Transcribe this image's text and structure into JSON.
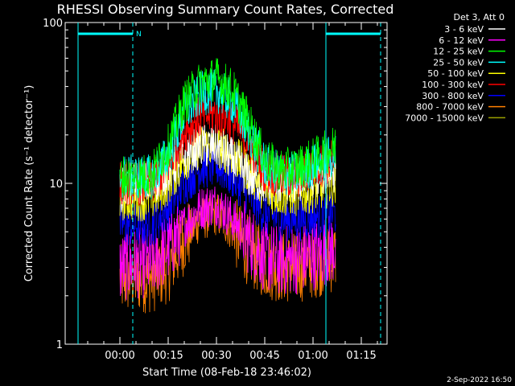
{
  "chart_data": {
    "type": "line",
    "title": "RHESSI Observing Summary Count Rates, Corrected",
    "ylabel": "Corrected Count Rate (s⁻¹ detector⁻¹)",
    "xlabel": "Start Time (08-Feb-18 23:46:02)",
    "y_scale": "log",
    "ylim": [
      1,
      100
    ],
    "y_ticks": [
      {
        "value": 1,
        "label": "1"
      },
      {
        "value": 10,
        "label": "10"
      },
      {
        "value": 100,
        "label": "100"
      }
    ],
    "xlim_minutes": [
      -17,
      83
    ],
    "x_ticks": [
      {
        "minutes": 0,
        "label": "00:00"
      },
      {
        "minutes": 15,
        "label": "00:15"
      },
      {
        "minutes": 30,
        "label": "00:30"
      },
      {
        "minutes": 45,
        "label": "00:45"
      },
      {
        "minutes": 60,
        "label": "01:00"
      },
      {
        "minutes": 75,
        "label": "01:15"
      }
    ],
    "legend_title": "Det 3, Att 0",
    "legend_position": "top-right",
    "night_marker_label": "N",
    "flag_intervals_minutes": [
      [
        -13,
        4
      ],
      [
        64,
        81
      ]
    ],
    "series": [
      {
        "name": "3 - 6 keV",
        "color": "#ffffff",
        "points": [
          [
            0,
            9
          ],
          [
            5,
            10
          ],
          [
            10,
            10
          ],
          [
            15,
            12
          ],
          [
            20,
            15
          ],
          [
            25,
            17
          ],
          [
            30,
            17
          ],
          [
            35,
            14
          ],
          [
            40,
            11
          ],
          [
            45,
            10
          ],
          [
            50,
            10
          ],
          [
            55,
            10
          ],
          [
            60,
            11
          ],
          [
            67,
            12
          ]
        ]
      },
      {
        "name": "6 - 12 keV",
        "color": "#ff00ff",
        "points": [
          [
            0,
            3
          ],
          [
            5,
            3.2
          ],
          [
            10,
            3.2
          ],
          [
            15,
            4
          ],
          [
            20,
            5.5
          ],
          [
            25,
            7
          ],
          [
            30,
            7.5
          ],
          [
            35,
            6
          ],
          [
            40,
            4.5
          ],
          [
            45,
            3.5
          ],
          [
            50,
            3.3
          ],
          [
            55,
            3.4
          ],
          [
            60,
            3.6
          ],
          [
            67,
            4
          ]
        ]
      },
      {
        "name": "12 - 25 keV",
        "color": "#00ff00",
        "points": [
          [
            0,
            11
          ],
          [
            5,
            11
          ],
          [
            10,
            11.5
          ],
          [
            15,
            17
          ],
          [
            20,
            32
          ],
          [
            25,
            42
          ],
          [
            30,
            45
          ],
          [
            35,
            38
          ],
          [
            40,
            24
          ],
          [
            45,
            14
          ],
          [
            50,
            12
          ],
          [
            55,
            12.5
          ],
          [
            60,
            14
          ],
          [
            67,
            17
          ]
        ]
      },
      {
        "name": "25 - 50 keV",
        "color": "#00ffff",
        "points": [
          [
            0,
            11
          ],
          [
            5,
            11
          ],
          [
            10,
            11
          ],
          [
            15,
            15
          ],
          [
            20,
            27
          ],
          [
            25,
            36
          ],
          [
            30,
            38
          ],
          [
            35,
            32
          ],
          [
            40,
            21
          ],
          [
            45,
            13
          ],
          [
            50,
            11.5
          ],
          [
            55,
            11.5
          ],
          [
            60,
            13
          ],
          [
            67,
            15
          ]
        ]
      },
      {
        "name": "50 - 100 keV",
        "color": "#ffff00",
        "points": [
          [
            0,
            8
          ],
          [
            5,
            8
          ],
          [
            10,
            8
          ],
          [
            15,
            10
          ],
          [
            20,
            14
          ],
          [
            25,
            17
          ],
          [
            30,
            17
          ],
          [
            35,
            15
          ],
          [
            40,
            12
          ],
          [
            45,
            9
          ],
          [
            50,
            8.5
          ],
          [
            55,
            8.5
          ],
          [
            60,
            9
          ],
          [
            67,
            10
          ]
        ]
      },
      {
        "name": "100 - 300 keV",
        "color": "#ff0000",
        "points": [
          [
            0,
            10
          ],
          [
            5,
            10
          ],
          [
            10,
            10
          ],
          [
            15,
            13
          ],
          [
            20,
            21
          ],
          [
            25,
            26
          ],
          [
            30,
            27
          ],
          [
            35,
            24
          ],
          [
            40,
            18
          ],
          [
            45,
            12
          ],
          [
            50,
            11
          ],
          [
            55,
            11
          ],
          [
            60,
            12.5
          ],
          [
            67,
            14
          ]
        ]
      },
      {
        "name": "300 - 800 keV",
        "color": "#0000ff",
        "points": [
          [
            0,
            5.5
          ],
          [
            5,
            5.5
          ],
          [
            10,
            5.5
          ],
          [
            15,
            7
          ],
          [
            20,
            10
          ],
          [
            25,
            12.5
          ],
          [
            30,
            13
          ],
          [
            35,
            11
          ],
          [
            40,
            8.5
          ],
          [
            45,
            6.5
          ],
          [
            50,
            6
          ],
          [
            55,
            6
          ],
          [
            60,
            6.2
          ],
          [
            67,
            6.5
          ]
        ]
      },
      {
        "name": "800 - 7000 keV",
        "color": "#ff8000",
        "points": [
          [
            0,
            2.5
          ],
          [
            5,
            2.6
          ],
          [
            10,
            2.6
          ],
          [
            15,
            3
          ],
          [
            20,
            4.5
          ],
          [
            25,
            6
          ],
          [
            30,
            6.5
          ],
          [
            35,
            5.2
          ],
          [
            40,
            3.8
          ],
          [
            45,
            3.2
          ],
          [
            50,
            3
          ],
          [
            55,
            3
          ],
          [
            60,
            3.2
          ],
          [
            67,
            3.5
          ]
        ]
      },
      {
        "name": "7000 - 15000 keV",
        "color": "#9aa000",
        "points": []
      }
    ]
  },
  "footer": {
    "date_stamp": "2-Sep-2022 16:50"
  }
}
